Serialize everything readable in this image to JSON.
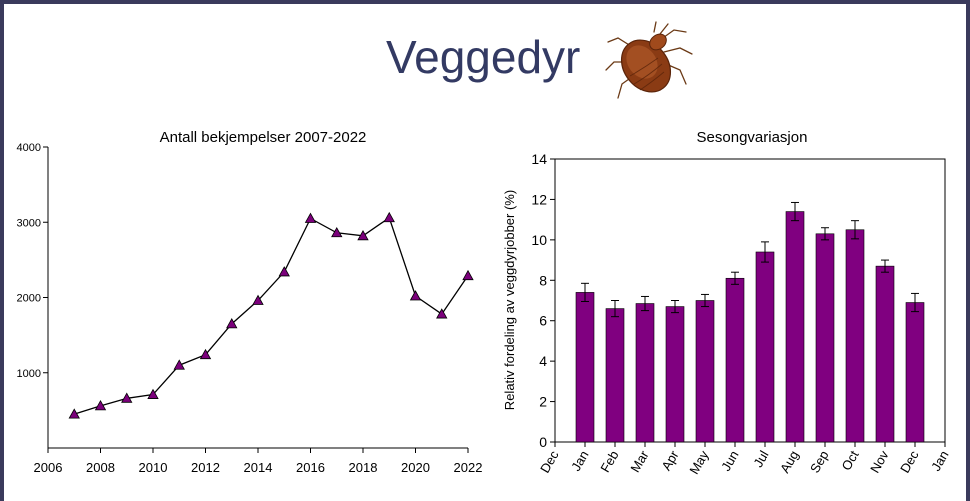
{
  "slide": {
    "title": "Veggedyr",
    "bug_icon": "bedbug-icon"
  },
  "chart_data": [
    {
      "type": "line",
      "title": "Antall bekjempelser 2007-2022",
      "xlabel": "",
      "ylabel": "",
      "xlim": [
        2006,
        2022
      ],
      "ylim": [
        0,
        4000
      ],
      "xticks": [
        "2006",
        "2008",
        "2010",
        "2012",
        "2014",
        "2016",
        "2018",
        "2020",
        "2022"
      ],
      "yticks": [
        "1000",
        "2000",
        "3000",
        "4000"
      ],
      "marker": "triangle",
      "marker_color": "#7b007b",
      "line_color": "#000000",
      "x": [
        2007,
        2008,
        2009,
        2010,
        2011,
        2012,
        2013,
        2014,
        2015,
        2016,
        2017,
        2018,
        2019,
        2020,
        2021,
        2022
      ],
      "y": [
        450,
        560,
        660,
        710,
        1100,
        1240,
        1650,
        1960,
        2340,
        3050,
        2860,
        2820,
        3060,
        2020,
        1780,
        2290
      ]
    },
    {
      "type": "bar",
      "title": "Sesongvariasjon",
      "ylabel": "Relativ fordeling av veggdyrjobber (%)",
      "ylim": [
        0,
        14
      ],
      "yticks": [
        "0",
        "2",
        "4",
        "6",
        "8",
        "10",
        "12",
        "14"
      ],
      "tick_labels": [
        "Dec",
        "Jan",
        "Feb",
        "Mar",
        "Apr",
        "May",
        "Jun",
        "Jul",
        "Aug",
        "Sep",
        "Oct",
        "Nov",
        "Dec",
        "Jan"
      ],
      "categories": [
        "Jan",
        "Feb",
        "Mar",
        "Apr",
        "May",
        "Jun",
        "Jul",
        "Aug",
        "Sep",
        "Oct",
        "Nov",
        "Dec"
      ],
      "values": [
        7.4,
        6.6,
        6.85,
        6.7,
        7.0,
        8.1,
        9.4,
        11.4,
        10.3,
        10.5,
        8.7,
        6.9
      ],
      "errors": [
        0.45,
        0.4,
        0.35,
        0.3,
        0.3,
        0.3,
        0.5,
        0.45,
        0.3,
        0.45,
        0.3,
        0.45
      ],
      "bar_color": "#800080"
    }
  ]
}
